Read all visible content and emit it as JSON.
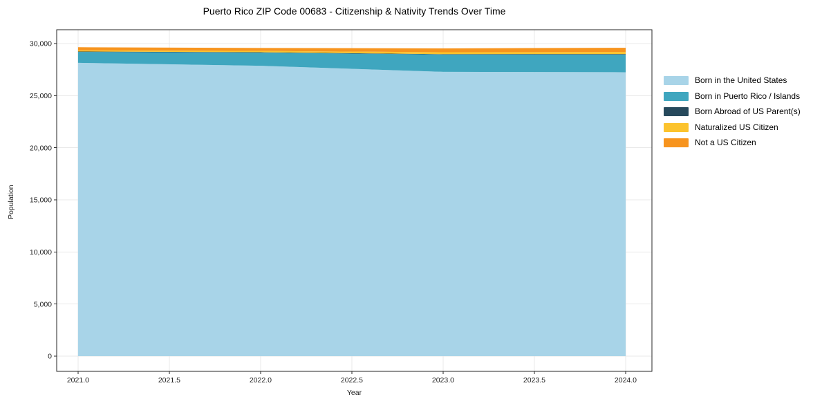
{
  "page": {
    "background": "#ffffff"
  },
  "chart_data": {
    "type": "area",
    "stacked": true,
    "title": "Puerto Rico ZIP Code 00683 - Citizenship & Nativity Trends Over Time",
    "xlabel": "Year",
    "ylabel": "Population",
    "x": [
      2021,
      2022,
      2023,
      2024
    ],
    "series": [
      {
        "name": "Born in the United States",
        "color": "#a8d4e8",
        "values": [
          28150,
          27870,
          27290,
          27250
        ]
      },
      {
        "name": "Born in Puerto Rico / Islands",
        "color": "#3fa6bf",
        "values": [
          1050,
          1260,
          1660,
          1700
        ]
      },
      {
        "name": "Born Abroad of US Parent(s)",
        "color": "#26495c",
        "values": [
          40,
          40,
          40,
          50
        ]
      },
      {
        "name": "Naturalized US Citizen",
        "color": "#fcc32d",
        "values": [
          110,
          130,
          180,
          200
        ]
      },
      {
        "name": "Not a US Citizen",
        "color": "#f7941e",
        "values": [
          300,
          280,
          370,
          400
        ]
      }
    ],
    "x_ticks": {
      "values": [
        2021.0,
        2021.5,
        2022.0,
        2022.5,
        2023.0,
        2023.5,
        2024.0
      ],
      "labels": [
        "2021.0",
        "2021.5",
        "2022.0",
        "2022.5",
        "2023.0",
        "2023.5",
        "2024.0"
      ]
    },
    "y_ticks": {
      "values": [
        0,
        5000,
        10000,
        15000,
        20000,
        25000,
        30000
      ],
      "labels": [
        "0",
        "5,000",
        "10,000",
        "15,000",
        "20,000",
        "25,000",
        "30,000"
      ]
    },
    "xlim": [
      2020.883,
      2024.144
    ],
    "ylim": [
      -1460,
      31330
    ],
    "grid": true,
    "legend_position": "right",
    "axis_color": "#262626",
    "grid_color": "#e8e8e8",
    "text_color": "#1a1a1a"
  }
}
